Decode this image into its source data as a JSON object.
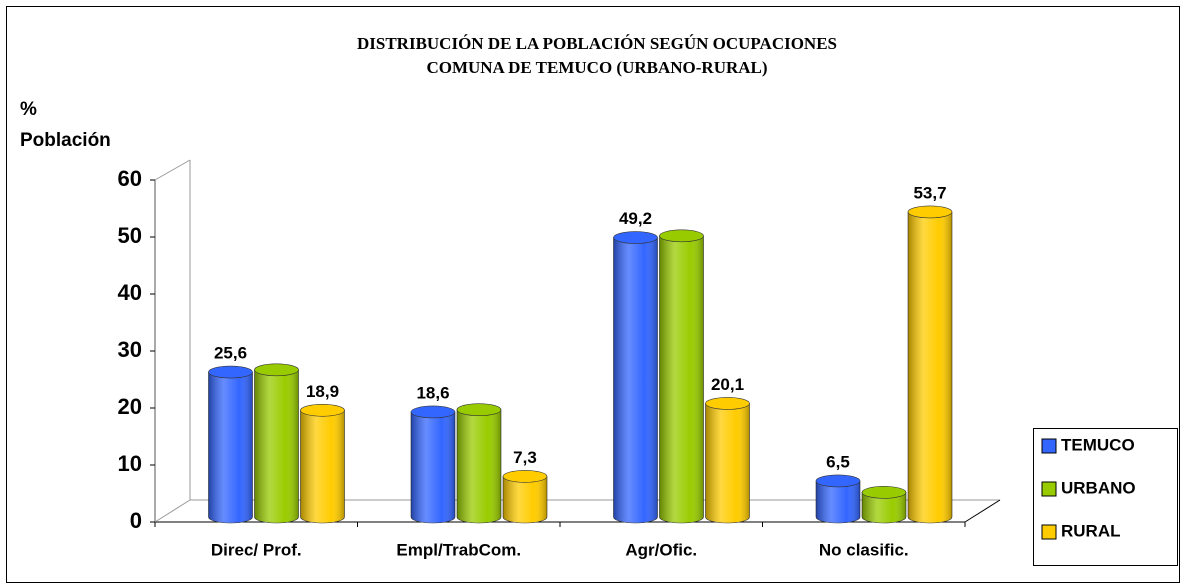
{
  "chart_data": {
    "type": "bar3d",
    "title": "DISTRIBUCIÓN DE LA POBLACIÓN SEGÚN OCUPACIONES",
    "subtitle": "COMUNA DE TEMUCO (URBANO-RURAL)",
    "y_label_lines": [
      "%",
      "Población"
    ],
    "categories": [
      "Direc/ Prof.",
      "Empl/TrabCom.",
      "Agr/Ofic.",
      "No clasific."
    ],
    "series": [
      {
        "name": "TEMUCO",
        "color": "#3366ff",
        "values": [
          25.6,
          18.6,
          49.2,
          6.5
        ],
        "value_labels": [
          "25,6",
          "18,6",
          "49,2",
          "6,5"
        ]
      },
      {
        "name": "URBANO",
        "color": "#99cc00",
        "values": [
          26.0,
          19.0,
          49.5,
          4.5
        ]
      },
      {
        "name": "RURAL",
        "color": "#ffcc00",
        "values": [
          18.9,
          7.3,
          20.1,
          53.7
        ],
        "value_labels": [
          "18,9",
          "7,3",
          "20,1",
          "53,7"
        ]
      }
    ],
    "ylim": [
      0,
      60
    ],
    "yticks": [
      0,
      10,
      20,
      30,
      40,
      50,
      60
    ],
    "legend": "right"
  }
}
